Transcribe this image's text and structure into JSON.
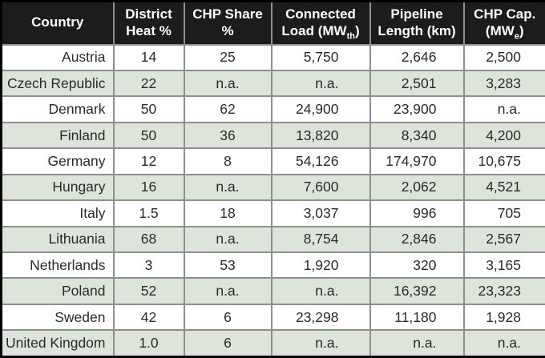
{
  "colors": {
    "header_bg": "#1c1c1c",
    "header_text": "#ffffff",
    "row_even_bg": "#ffffff",
    "row_alt_bg": "#dde4da",
    "grid_line": "#8f8f8f",
    "outer_border": "#000000",
    "cell_text": "#2b2b2b"
  },
  "chart_data": {
    "type": "table",
    "columns": [
      "Country",
      "District Heat %",
      "CHP Share %",
      "Connected Load (MWth)",
      "Pipeline Length (km)",
      "CHP Cap. (MWe)"
    ],
    "header_lines": [
      {
        "line1": "Country",
        "line2": "",
        "sub": "",
        "line2_end": ""
      },
      {
        "line1": "District",
        "line2": "Heat %",
        "sub": "",
        "line2_end": ""
      },
      {
        "line1": "CHP Share",
        "line2": "%",
        "sub": "",
        "line2_end": ""
      },
      {
        "line1": "Connected",
        "line2": "Load (MW",
        "sub": "th",
        "line2_end": ")"
      },
      {
        "line1": "Pipeline",
        "line2": "Length (km)",
        "sub": "",
        "line2_end": ""
      },
      {
        "line1": "CHP Cap.",
        "line2": "(MW",
        "sub": "e",
        "line2_end": ")"
      }
    ],
    "rows": [
      [
        "Austria",
        "14",
        "25",
        "5,750",
        "2,646",
        "2,500"
      ],
      [
        "Czech Republic",
        "22",
        "n.a.",
        "n.a.",
        "2,501",
        "3,283"
      ],
      [
        "Denmark",
        "50",
        "62",
        "24,900",
        "23,900",
        "n.a."
      ],
      [
        "Finland",
        "50",
        "36",
        "13,820",
        "8,340",
        "4,200"
      ],
      [
        "Germany",
        "12",
        "8",
        "54,126",
        "174,970",
        "10,675"
      ],
      [
        "Hungary",
        "16",
        "n.a.",
        "7,600",
        "2,062",
        "4,521"
      ],
      [
        "Italy",
        "1.5",
        "18",
        "3,037",
        "996",
        "705"
      ],
      [
        "Lithuania",
        "68",
        "n.a.",
        "8,754",
        "2,846",
        "2,567"
      ],
      [
        "Netherlands",
        "3",
        "53",
        "1,920",
        "320",
        "3,165"
      ],
      [
        "Poland",
        "52",
        "n.a.",
        "n.a.",
        "16,392",
        "23,323"
      ],
      [
        "Sweden",
        "42",
        "6",
        "23,298",
        "11,180",
        "1,928"
      ],
      [
        "United Kingdom",
        "1.0",
        "6",
        "n.a.",
        "n.a.",
        "n.a."
      ]
    ]
  }
}
